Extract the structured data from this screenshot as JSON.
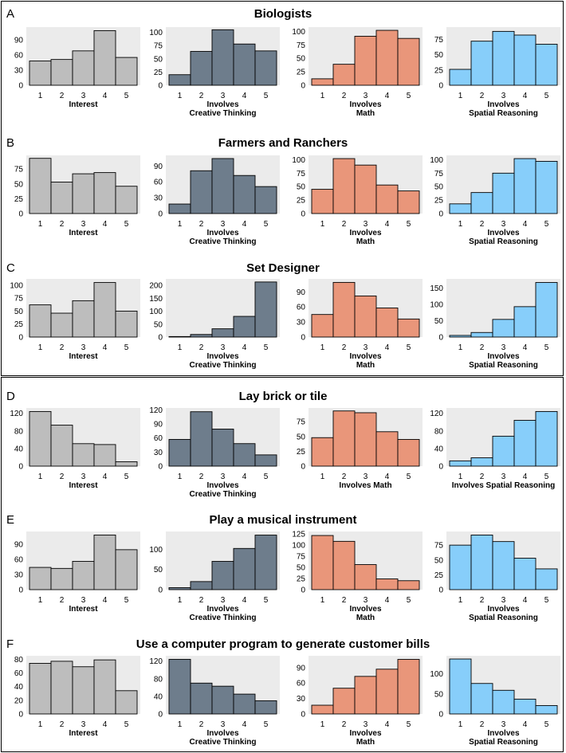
{
  "colors": {
    "interest": "#bdbdbd",
    "creative": "#6e7d8c",
    "math": "#e9967a",
    "spatial": "#87cefa",
    "panel_bg": "#ebebeb"
  },
  "chart_data": [
    {
      "letter": "A",
      "title": "Biologists",
      "charts": [
        {
          "type": "bar",
          "variable": "interest",
          "categories": [
            "1",
            "2",
            "3",
            "4",
            "5"
          ],
          "values": [
            48,
            51,
            68,
            108,
            55
          ],
          "ylim": [
            0,
            115
          ],
          "yticks": [
            "0",
            "30",
            "60",
            "90"
          ],
          "xlabel": [
            "Interest"
          ]
        },
        {
          "type": "bar",
          "variable": "creative",
          "categories": [
            "1",
            "2",
            "3",
            "4",
            "5"
          ],
          "values": [
            20,
            64,
            105,
            78,
            65
          ],
          "ylim": [
            0,
            110
          ],
          "yticks": [
            "0",
            "25",
            "50",
            "75",
            "100"
          ],
          "xlabel": [
            "Involves",
            "Creative Thinking"
          ]
        },
        {
          "type": "bar",
          "variable": "math",
          "categories": [
            "1",
            "2",
            "3",
            "4",
            "5"
          ],
          "values": [
            12,
            39,
            91,
            102,
            87
          ],
          "ylim": [
            0,
            108
          ],
          "yticks": [
            "0",
            "25",
            "50",
            "75",
            "100"
          ],
          "xlabel": [
            "Involves",
            "Math"
          ]
        },
        {
          "type": "bar",
          "variable": "spatial",
          "categories": [
            "1",
            "2",
            "3",
            "4",
            "5"
          ],
          "values": [
            26,
            72,
            88,
            82,
            67
          ],
          "ylim": [
            0,
            95
          ],
          "yticks": [
            "0",
            "25",
            "50",
            "75"
          ],
          "xlabel": [
            "Involves",
            "Spatial Reasoning"
          ]
        }
      ]
    },
    {
      "letter": "B",
      "title": "Farmers and Ranchers",
      "charts": [
        {
          "type": "bar",
          "variable": "interest",
          "categories": [
            "1",
            "2",
            "3",
            "4",
            "5"
          ],
          "values": [
            93,
            53,
            67,
            69,
            46
          ],
          "ylim": [
            0,
            98
          ],
          "yticks": [
            "0",
            "25",
            "50",
            "75"
          ],
          "xlabel": [
            "Interest"
          ]
        },
        {
          "type": "bar",
          "variable": "creative",
          "categories": [
            "1",
            "2",
            "3",
            "4",
            "5"
          ],
          "values": [
            18,
            81,
            104,
            72,
            51
          ],
          "ylim": [
            0,
            110
          ],
          "yticks": [
            "0",
            "30",
            "60",
            "90"
          ],
          "xlabel": [
            "Involves",
            "Creative Thinking"
          ]
        },
        {
          "type": "bar",
          "variable": "math",
          "categories": [
            "1",
            "2",
            "3",
            "4",
            "5"
          ],
          "values": [
            45,
            102,
            90,
            53,
            42
          ],
          "ylim": [
            0,
            108
          ],
          "yticks": [
            "0",
            "25",
            "50",
            "75",
            "100"
          ],
          "xlabel": [
            "Involves",
            "Math"
          ]
        },
        {
          "type": "bar",
          "variable": "spatial",
          "categories": [
            "1",
            "2",
            "3",
            "4",
            "5"
          ],
          "values": [
            18,
            39,
            75,
            102,
            97
          ],
          "ylim": [
            0,
            108
          ],
          "yticks": [
            "0",
            "25",
            "50",
            "75",
            "100"
          ],
          "xlabel": [
            "Involves",
            "Spatial Reasoning"
          ]
        }
      ]
    },
    {
      "letter": "C",
      "title": "Set Designer",
      "charts": [
        {
          "type": "bar",
          "variable": "interest",
          "categories": [
            "1",
            "2",
            "3",
            "4",
            "5"
          ],
          "values": [
            62,
            46,
            70,
            105,
            50
          ],
          "ylim": [
            0,
            112
          ],
          "yticks": [
            "0",
            "25",
            "50",
            "75",
            "100"
          ],
          "xlabel": [
            "Interest"
          ]
        },
        {
          "type": "bar",
          "variable": "creative",
          "categories": [
            "1",
            "2",
            "3",
            "4",
            "5"
          ],
          "values": [
            2,
            10,
            32,
            80,
            213
          ],
          "ylim": [
            0,
            225
          ],
          "yticks": [
            "0",
            "50",
            "100",
            "150",
            "200"
          ],
          "xlabel": [
            "Involves",
            "Creative Thinking"
          ]
        },
        {
          "type": "bar",
          "variable": "math",
          "categories": [
            "1",
            "2",
            "3",
            "4",
            "5"
          ],
          "values": [
            45,
            109,
            82,
            58,
            36
          ],
          "ylim": [
            0,
            116
          ],
          "yticks": [
            "0",
            "30",
            "60",
            "90"
          ],
          "xlabel": [
            "Involves",
            "Math"
          ]
        },
        {
          "type": "bar",
          "variable": "spatial",
          "categories": [
            "1",
            "2",
            "3",
            "4",
            "5"
          ],
          "values": [
            5,
            14,
            54,
            93,
            167
          ],
          "ylim": [
            0,
            178
          ],
          "yticks": [
            "0",
            "50",
            "100",
            "150"
          ],
          "xlabel": [
            "Involves",
            "Spatial Reasoning"
          ]
        }
      ]
    },
    {
      "letter": "D",
      "title": "Lay brick or tile",
      "charts": [
        {
          "type": "bar",
          "variable": "interest",
          "categories": [
            "1",
            "2",
            "3",
            "4",
            "5"
          ],
          "values": [
            124,
            93,
            51,
            49,
            10
          ],
          "ylim": [
            0,
            132
          ],
          "yticks": [
            "0",
            "40",
            "80",
            "120"
          ],
          "xlabel": [
            "Interest"
          ]
        },
        {
          "type": "bar",
          "variable": "creative",
          "categories": [
            "1",
            "2",
            "3",
            "4",
            "5"
          ],
          "values": [
            57,
            116,
            79,
            48,
            24
          ],
          "ylim": [
            0,
            124
          ],
          "yticks": [
            "0",
            "30",
            "60",
            "90",
            "120"
          ],
          "xlabel": [
            "Involves",
            "Creative Thinking"
          ]
        },
        {
          "type": "bar",
          "variable": "math",
          "categories": [
            "1",
            "2",
            "3",
            "4",
            "5"
          ],
          "values": [
            48,
            93,
            90,
            58,
            45
          ],
          "ylim": [
            0,
            98
          ],
          "yticks": [
            "0",
            "25",
            "50",
            "75"
          ],
          "xlabel": [
            "Involves Math"
          ]
        },
        {
          "type": "bar",
          "variable": "spatial",
          "categories": [
            "1",
            "2",
            "3",
            "4",
            "5"
          ],
          "values": [
            12,
            19,
            68,
            104,
            124
          ],
          "ylim": [
            0,
            132
          ],
          "yticks": [
            "0",
            "40",
            "80",
            "120"
          ],
          "xlabel": [
            "Involves Spatial Reasoning"
          ]
        }
      ]
    },
    {
      "letter": "E",
      "title": "Play a musical instrument",
      "charts": [
        {
          "type": "bar",
          "variable": "interest",
          "categories": [
            "1",
            "2",
            "3",
            "4",
            "5"
          ],
          "values": [
            44,
            42,
            56,
            108,
            79
          ],
          "ylim": [
            0,
            115
          ],
          "yticks": [
            "0",
            "30",
            "60",
            "90"
          ],
          "xlabel": [
            "Interest"
          ]
        },
        {
          "type": "bar",
          "variable": "creative",
          "categories": [
            "1",
            "2",
            "3",
            "4",
            "5"
          ],
          "values": [
            5,
            20,
            70,
            102,
            135
          ],
          "ylim": [
            0,
            144
          ],
          "yticks": [
            "0",
            "50",
            "100"
          ],
          "xlabel": [
            "Involves",
            "Creative Thinking"
          ]
        },
        {
          "type": "bar",
          "variable": "math",
          "categories": [
            "1",
            "2",
            "3",
            "4",
            "5"
          ],
          "values": [
            121,
            108,
            56,
            24,
            20
          ],
          "ylim": [
            0,
            130
          ],
          "yticks": [
            "0",
            "25",
            "50",
            "75",
            "100",
            "125"
          ],
          "xlabel": [
            "Involves",
            "Math"
          ]
        },
        {
          "type": "bar",
          "variable": "spatial",
          "categories": [
            "1",
            "2",
            "3",
            "4",
            "5"
          ],
          "values": [
            75,
            92,
            81,
            53,
            35
          ],
          "ylim": [
            0,
            98
          ],
          "yticks": [
            "0",
            "25",
            "50",
            "75"
          ],
          "xlabel": [
            "Involves",
            "Spatial Reasoning"
          ]
        }
      ]
    },
    {
      "letter": "F",
      "title": "Use a computer program to generate customer bills",
      "charts": [
        {
          "type": "bar",
          "variable": "interest",
          "categories": [
            "1",
            "2",
            "3",
            "4",
            "5"
          ],
          "values": [
            74,
            77,
            69,
            79,
            34
          ],
          "ylim": [
            0,
            85
          ],
          "yticks": [
            "0",
            "20",
            "40",
            "60",
            "80"
          ],
          "xlabel": [
            "Interest"
          ]
        },
        {
          "type": "bar",
          "variable": "creative",
          "categories": [
            "1",
            "2",
            "3",
            "4",
            "5"
          ],
          "values": [
            124,
            70,
            63,
            45,
            30
          ],
          "ylim": [
            0,
            132
          ],
          "yticks": [
            "0",
            "40",
            "80",
            "120"
          ],
          "xlabel": [
            "Involves",
            "Creative Thinking"
          ]
        },
        {
          "type": "bar",
          "variable": "math",
          "categories": [
            "1",
            "2",
            "3",
            "4",
            "5"
          ],
          "values": [
            17,
            50,
            73,
            87,
            106
          ],
          "ylim": [
            0,
            113
          ],
          "yticks": [
            "0",
            "30",
            "60",
            "90"
          ],
          "xlabel": [
            "Involves",
            "Math"
          ]
        },
        {
          "type": "bar",
          "variable": "spatial",
          "categories": [
            "1",
            "2",
            "3",
            "4",
            "5"
          ],
          "values": [
            137,
            76,
            59,
            37,
            21
          ],
          "ylim": [
            0,
            145
          ],
          "yticks": [
            "0",
            "50",
            "100"
          ],
          "xlabel": [
            "Involves",
            "Spatial Reasoning"
          ]
        }
      ]
    }
  ]
}
